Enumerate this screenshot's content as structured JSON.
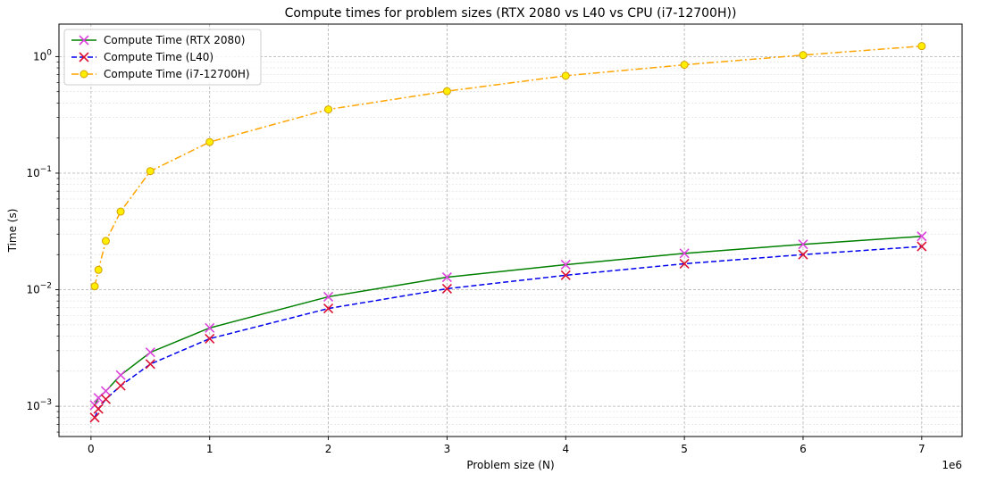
{
  "chart_data": {
    "type": "line",
    "title": "Compute times for problem sizes (RTX 2080 vs L40 vs CPU (i7-12700H))",
    "xlabel": "Problem size (N)",
    "ylabel": "Time (s)",
    "x_offset_label": "1e6",
    "x_scale": "linear",
    "y_scale": "log",
    "xlim": [
      -270000,
      7340000
    ],
    "ylim": [
      0.00055,
      1.9
    ],
    "grid": true,
    "legend_position": "upper-left",
    "x_ticks": [
      0,
      1,
      2,
      3,
      4,
      5,
      6,
      7
    ],
    "x_tick_labels": [
      "0",
      "1",
      "2",
      "3",
      "4",
      "5",
      "6",
      "7"
    ],
    "y_ticks": [
      0.001,
      0.01,
      0.1,
      1
    ],
    "y_tick_exponents": [
      "-3",
      "-2",
      "-1",
      "0"
    ],
    "y_tick_base": "10",
    "x": [
      31250,
      62500,
      125000,
      250000,
      500000,
      1000000,
      2000000,
      3000000,
      4000000,
      5000000,
      6000000,
      7000000
    ],
    "series": [
      {
        "name": "Compute Time (RTX 2080)",
        "color": "#008000",
        "marker": "x",
        "marker_color": "#dd44dd",
        "line_style": "solid",
        "values": [
          0.00102,
          0.00118,
          0.00135,
          0.00185,
          0.0029,
          0.0047,
          0.0087,
          0.0128,
          0.0164,
          0.0205,
          0.0245,
          0.0287
        ]
      },
      {
        "name": "Compute Time (L40)",
        "color": "#0000ee",
        "marker": "x",
        "marker_color": "#dd1133",
        "line_style": "dashed",
        "values": [
          0.0008,
          0.00095,
          0.00115,
          0.0015,
          0.0023,
          0.0038,
          0.0069,
          0.0102,
          0.0133,
          0.0167,
          0.02,
          0.0235
        ]
      },
      {
        "name": "Compute Time (i7-12700H)",
        "color": "#ffa500",
        "marker": "o",
        "marker_color": "#ffee00",
        "line_style": "dashdot",
        "values": [
          0.0107,
          0.0148,
          0.0262,
          0.0468,
          0.104,
          0.185,
          0.352,
          0.505,
          0.685,
          0.85,
          1.03,
          1.23
        ]
      }
    ]
  }
}
